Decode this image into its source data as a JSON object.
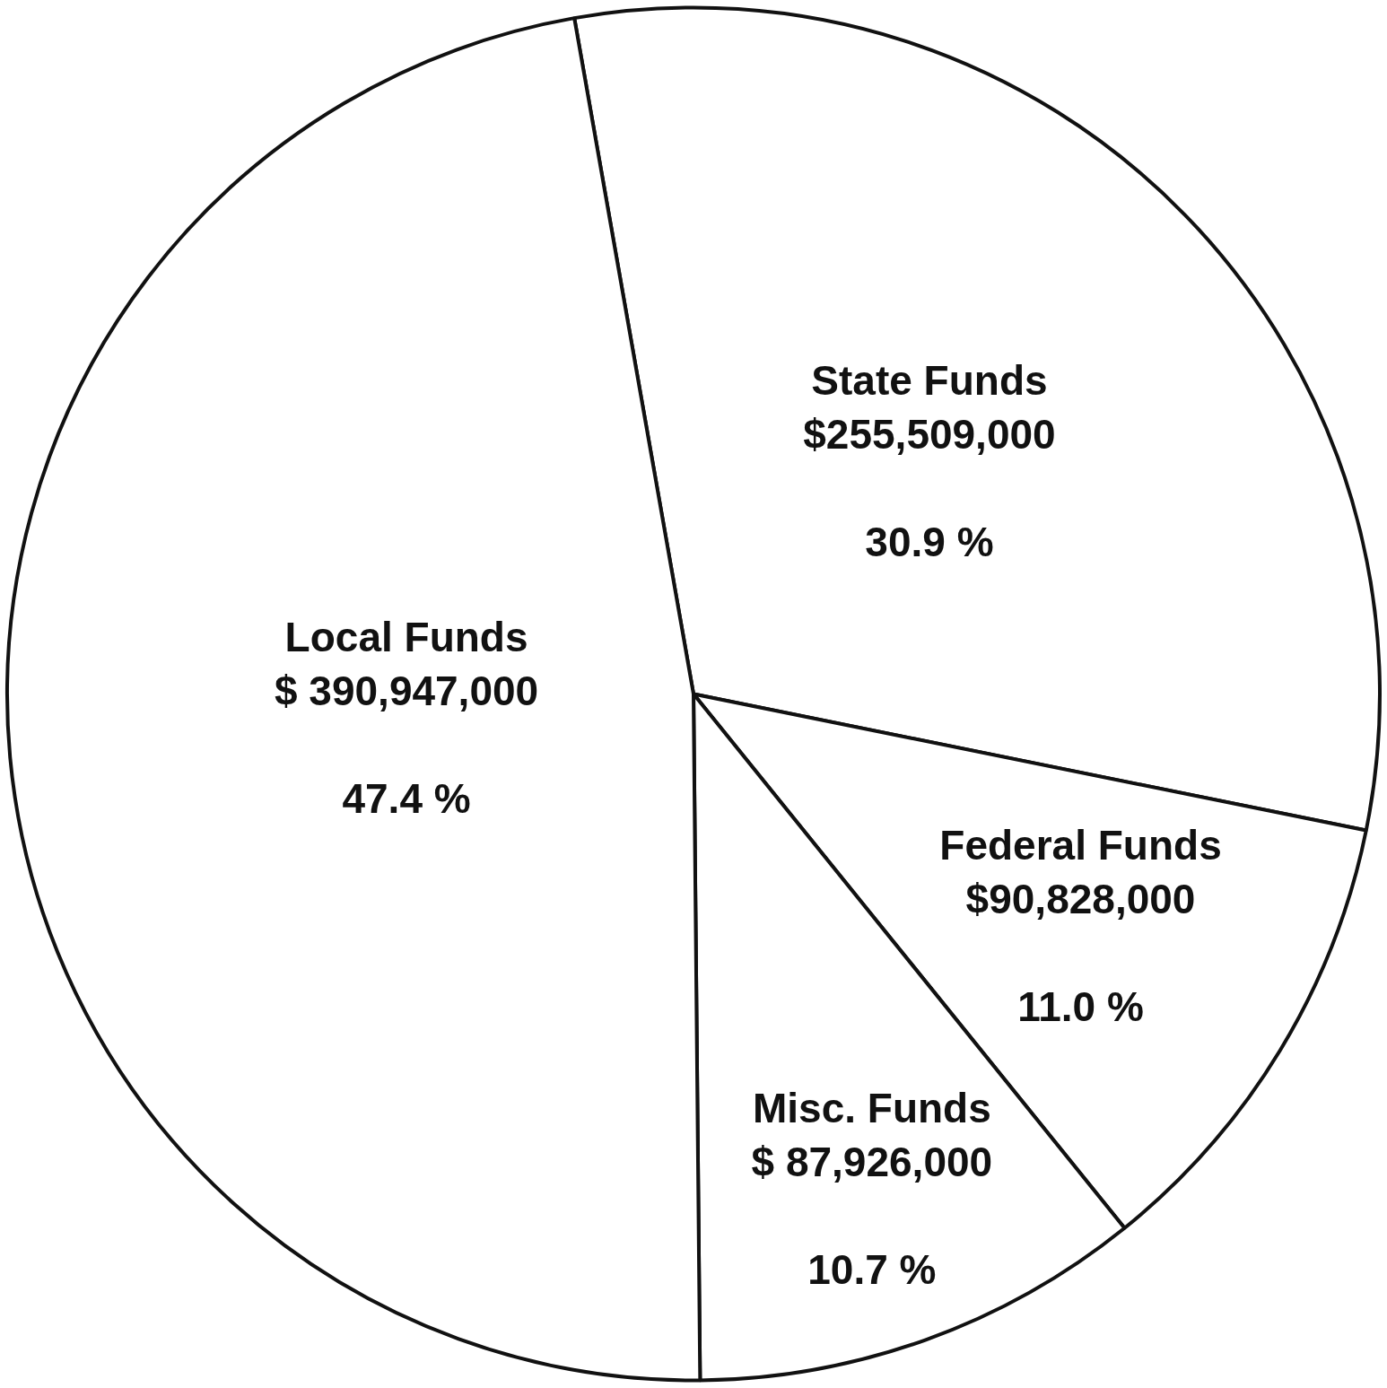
{
  "chart_data": {
    "type": "pie",
    "categories": [
      "State Funds",
      "Federal Funds",
      "Misc. Funds",
      "Local Funds"
    ],
    "values": [
      255509000,
      90828000,
      87926000,
      390947000
    ],
    "colors": [
      "#ffffff",
      "#ffffff",
      "#ffffff",
      "#ffffff"
    ],
    "value_labels": [
      "$255,509,000",
      "$90,828,000",
      "$ 87,926,000",
      "$ 390,947,000"
    ],
    "annotations": [
      {
        "text": "30.9 %",
        "x": "State Funds"
      },
      {
        "text": "11.0 %",
        "x": "Federal Funds"
      },
      {
        "text": "10.7 %",
        "x": "Misc. Funds"
      },
      {
        "text": "47.4 %",
        "x": "Local Funds"
      }
    ],
    "legend": false
  }
}
